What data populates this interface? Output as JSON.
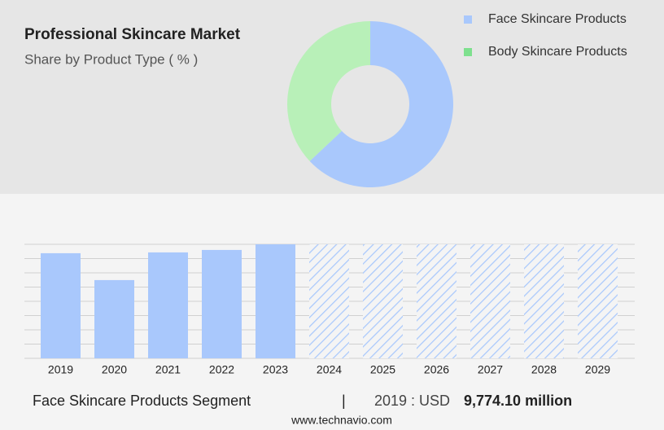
{
  "chart_data": [
    {
      "type": "pie",
      "title": "Professional Skincare Market",
      "subtitle": "Share by Product Type ( % )",
      "categories": [
        "Face Skincare Products",
        "Body Skincare Products"
      ],
      "values": [
        63,
        37
      ],
      "colors": [
        "#a9c8fc",
        "#b8f0b8"
      ],
      "legend_colors": [
        "#a9c8fc",
        "#7ee08e"
      ],
      "legend": "top-right"
    },
    {
      "type": "bar",
      "categories": [
        "2019",
        "2020",
        "2021",
        "2022",
        "2023",
        "2024",
        "2025",
        "2026",
        "2027",
        "2028",
        "2029"
      ],
      "values": [
        9774.1,
        7274,
        9850,
        10077,
        10600,
        null,
        null,
        null,
        null,
        null,
        null
      ],
      "color": "#a9c8fc",
      "ylim": [
        0,
        10600
      ],
      "yticks": [
        0,
        1325,
        2650,
        3975,
        5300,
        6625,
        7950,
        9275,
        10600
      ],
      "grid": true
    }
  ],
  "footer": {
    "segment": "Face Skincare Products Segment",
    "separator": "|",
    "year_label": "2019 : USD",
    "amount": "9,774.10 million",
    "source": "www.technavio.com"
  }
}
